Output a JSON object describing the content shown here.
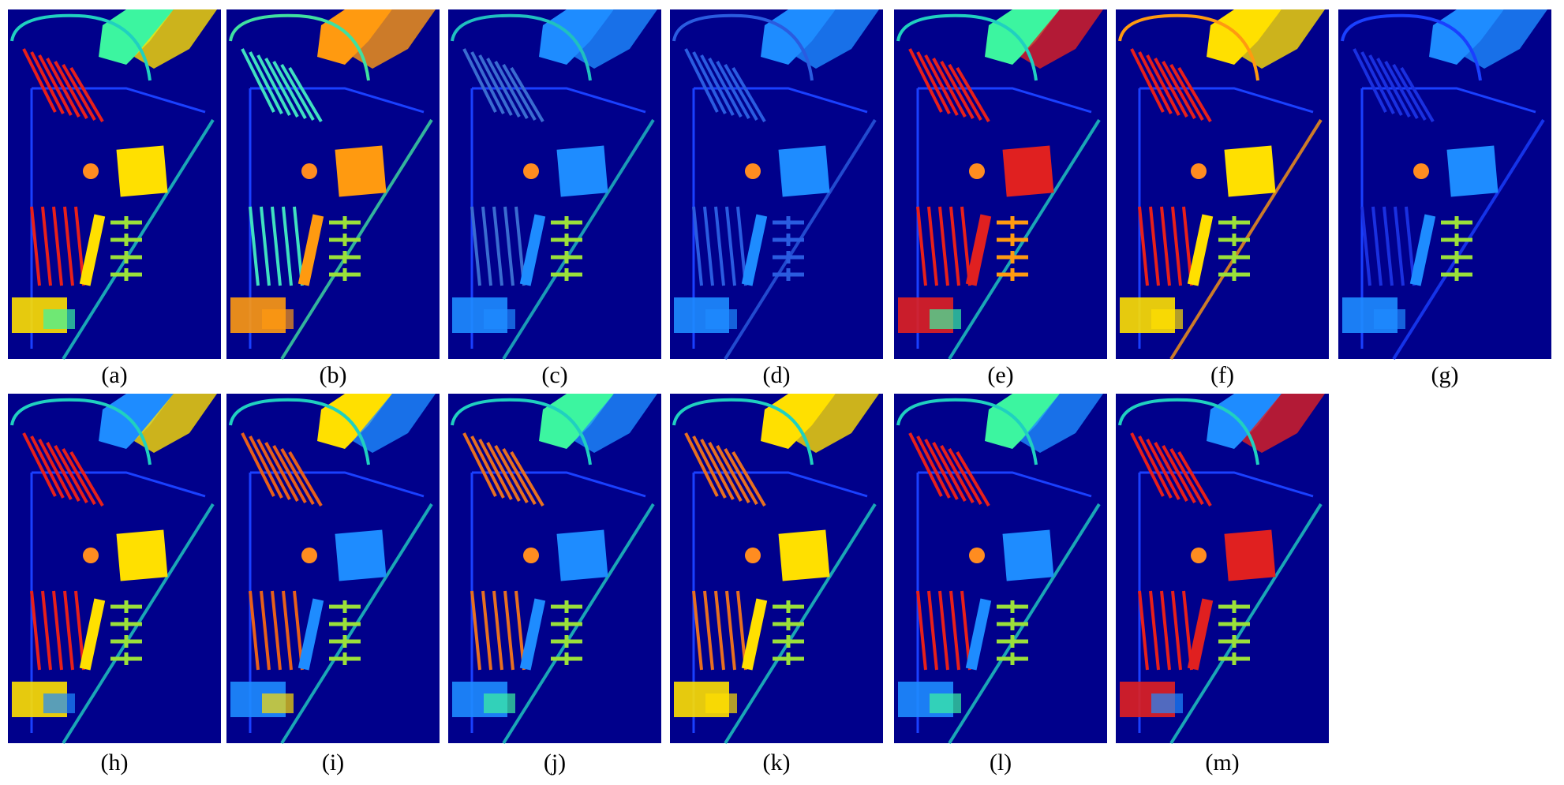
{
  "panels": [
    {
      "label": "(a)"
    },
    {
      "label": "(b)"
    },
    {
      "label": "(c)"
    },
    {
      "label": "(d)"
    },
    {
      "label": "(e)"
    },
    {
      "label": "(f)"
    },
    {
      "label": "(g)"
    },
    {
      "label": "(h)"
    },
    {
      "label": "(i)"
    },
    {
      "label": "(j)"
    },
    {
      "label": "(k)"
    },
    {
      "label": "(l)"
    },
    {
      "label": "(m)"
    }
  ]
}
